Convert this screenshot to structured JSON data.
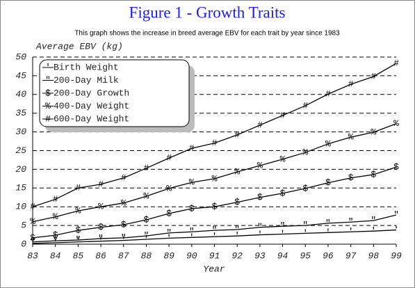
{
  "chart_data": {
    "type": "line",
    "title": "Figure 1 - Growth Traits",
    "subtitle": "This graph shows the increase in breed average EBV for each trait by year since 1983",
    "y_label": "Average EBV (kg)",
    "x_label": "Year",
    "categories": [
      "83",
      "84",
      "85",
      "86",
      "87",
      "88",
      "89",
      "90",
      "91",
      "92",
      "93",
      "94",
      "95",
      "96",
      "97",
      "98",
      "99"
    ],
    "ylim": [
      0,
      50
    ],
    "yticks": [
      0,
      5,
      10,
      15,
      20,
      25,
      30,
      35,
      40,
      45,
      50
    ],
    "grid": true,
    "legend": "upper-left",
    "series": [
      {
        "name": "Birth Weight",
        "marker": "'",
        "color": "#000000",
        "values": [
          0.2,
          0.4,
          0.6,
          0.8,
          1.0,
          1.3,
          1.6,
          1.8,
          2.0,
          2.2,
          2.5,
          2.7,
          2.9,
          3.1,
          3.3,
          3.5,
          3.8
        ]
      },
      {
        "name": "200-Day Milk",
        "marker": "\"",
        "color": "#000000",
        "values": [
          0.6,
          0.9,
          1.1,
          1.5,
          1.7,
          2.2,
          3.0,
          3.3,
          3.7,
          3.9,
          4.5,
          4.8,
          5.0,
          5.6,
          5.9,
          6.3,
          7.8
        ]
      },
      {
        "name": "200-Day Growth",
        "marker": "$",
        "color": "#000000",
        "values": [
          1.7,
          2.4,
          3.7,
          4.5,
          5.2,
          6.5,
          8.2,
          9.5,
          10.0,
          11.2,
          12.5,
          13.6,
          14.9,
          16.4,
          17.7,
          18.6,
          20.6
        ]
      },
      {
        "name": "400-Day Weight",
        "marker": "%",
        "color": "#000000",
        "values": [
          6.0,
          7.3,
          8.9,
          10.0,
          11.0,
          12.8,
          14.9,
          16.5,
          17.5,
          19.3,
          21.0,
          22.7,
          24.5,
          26.8,
          28.6,
          29.9,
          32.2
        ]
      },
      {
        "name": "600-Day Weight",
        "marker": "#",
        "color": "#000000",
        "values": [
          10.0,
          12.0,
          15.0,
          16.0,
          17.7,
          20.3,
          23.0,
          25.6,
          27.0,
          29.2,
          31.8,
          34.4,
          37.0,
          40.1,
          42.7,
          44.8,
          48.3
        ]
      }
    ]
  }
}
